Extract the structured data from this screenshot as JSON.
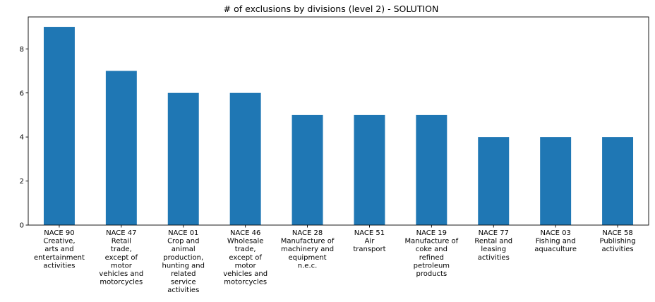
{
  "chart_data": {
    "type": "bar",
    "title": "# of exclusions by divisions (level 2) - SOLUTION",
    "xlabel": "",
    "ylabel": "",
    "ylim": [
      0,
      9.45
    ],
    "yticks": [
      0,
      2,
      4,
      6,
      8
    ],
    "grid": false,
    "legend": "none",
    "bar_color": "#1f77b4",
    "categories": [
      [
        "NACE 90",
        "Creative,",
        "arts and",
        "entertainment",
        "activities"
      ],
      [
        "NACE 47",
        "Retail",
        "trade,",
        "except of",
        "motor",
        "vehicles and",
        "motorcycles"
      ],
      [
        "NACE 01",
        "Crop and",
        "animal",
        "production,",
        "hunting and",
        "related",
        "service",
        "activities"
      ],
      [
        "NACE 46",
        "Wholesale",
        "trade,",
        "except of",
        "motor",
        "vehicles and",
        "motorcycles"
      ],
      [
        "NACE 28",
        "Manufacture of",
        "machinery and",
        "equipment",
        "n.e.c."
      ],
      [
        "NACE 51",
        "Air",
        "transport"
      ],
      [
        "NACE 19",
        "Manufacture of",
        "coke and",
        "refined",
        "petroleum",
        "products"
      ],
      [
        "NACE 77",
        "Rental and",
        "leasing",
        "activities"
      ],
      [
        "NACE 03",
        "Fishing and",
        "aquaculture"
      ],
      [
        "NACE 58",
        "Publishing",
        "activities"
      ]
    ],
    "values": [
      9,
      7,
      6,
      6,
      5,
      5,
      5,
      4,
      4,
      4
    ]
  }
}
